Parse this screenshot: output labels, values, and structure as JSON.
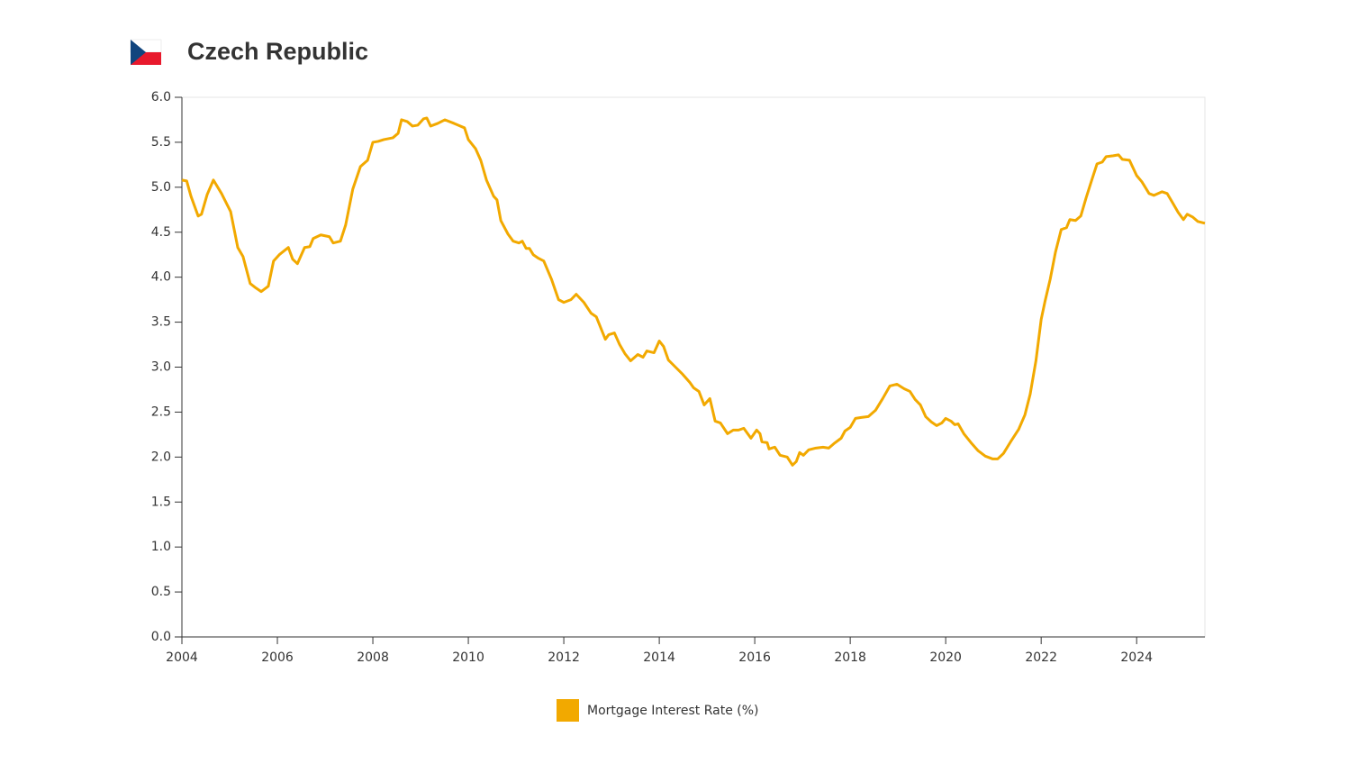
{
  "chart_data": {
    "type": "line",
    "title": "Czech Republic",
    "x": [
      2004.0,
      2004.1,
      2004.19,
      2004.34,
      2004.41,
      2004.53,
      2004.66,
      2004.83,
      2005.02,
      2005.17,
      2005.28,
      2005.43,
      2005.55,
      2005.66,
      2005.81,
      2005.92,
      2006.04,
      2006.23,
      2006.32,
      2006.42,
      2006.57,
      2006.68,
      2006.75,
      2006.91,
      2007.09,
      2007.17,
      2007.32,
      2007.43,
      2007.58,
      2007.74,
      2007.89,
      2008.0,
      2008.11,
      2008.23,
      2008.42,
      2008.53,
      2008.6,
      2008.72,
      2008.83,
      2008.94,
      2009.06,
      2009.13,
      2009.21,
      2009.36,
      2009.51,
      2009.7,
      2009.92,
      2010.0,
      2010.15,
      2010.26,
      2010.38,
      2010.53,
      2010.6,
      2010.68,
      2010.83,
      2010.94,
      2011.06,
      2011.13,
      2011.21,
      2011.28,
      2011.36,
      2011.47,
      2011.58,
      2011.74,
      2011.89,
      2012.0,
      2012.15,
      2012.26,
      2012.42,
      2012.57,
      2012.68,
      2012.87,
      2012.94,
      2013.06,
      2013.17,
      2013.28,
      2013.4,
      2013.55,
      2013.66,
      2013.74,
      2013.89,
      2014.0,
      2014.09,
      2014.19,
      2014.34,
      2014.49,
      2014.64,
      2014.72,
      2014.83,
      2014.94,
      2015.06,
      2015.17,
      2015.28,
      2015.43,
      2015.55,
      2015.66,
      2015.77,
      2015.92,
      2016.04,
      2016.11,
      2016.15,
      2016.26,
      2016.3,
      2016.42,
      2016.53,
      2016.68,
      2016.79,
      2016.87,
      2016.94,
      2017.02,
      2017.13,
      2017.28,
      2017.43,
      2017.55,
      2017.66,
      2017.81,
      2017.89,
      2018.0,
      2018.11,
      2018.23,
      2018.38,
      2018.53,
      2018.68,
      2018.83,
      2018.98,
      2019.13,
      2019.25,
      2019.36,
      2019.47,
      2019.58,
      2019.7,
      2019.81,
      2019.92,
      2020.0,
      2020.11,
      2020.19,
      2020.26,
      2020.38,
      2020.53,
      2020.68,
      2020.83,
      2020.98,
      2021.09,
      2021.21,
      2021.36,
      2021.53,
      2021.66,
      2021.77,
      2021.89,
      2022.0,
      2022.08,
      2022.19,
      2022.3,
      2022.42,
      2022.53,
      2022.6,
      2022.72,
      2022.83,
      2022.94,
      2023.06,
      2023.17,
      2023.28,
      2023.36,
      2023.51,
      2023.62,
      2023.7,
      2023.85,
      2024.0,
      2024.11,
      2024.26,
      2024.36,
      2024.53,
      2024.64,
      2024.75,
      2024.87,
      2024.98,
      2025.06,
      2025.17,
      2025.28,
      2025.43
    ],
    "series": [
      {
        "name": "Mortgage Interest Rate (%)",
        "color": "#f2a900",
        "values": [
          5.08,
          5.07,
          4.9,
          4.68,
          4.7,
          4.92,
          5.08,
          4.93,
          4.73,
          4.33,
          4.23,
          3.93,
          3.88,
          3.84,
          3.9,
          4.18,
          4.25,
          4.33,
          4.2,
          4.15,
          4.33,
          4.34,
          4.43,
          4.47,
          4.45,
          4.38,
          4.4,
          4.58,
          4.98,
          5.23,
          5.3,
          5.5,
          5.51,
          5.53,
          5.55,
          5.6,
          5.75,
          5.73,
          5.68,
          5.69,
          5.76,
          5.77,
          5.68,
          5.71,
          5.75,
          5.71,
          5.66,
          5.53,
          5.43,
          5.3,
          5.08,
          4.9,
          4.86,
          4.63,
          4.48,
          4.4,
          4.38,
          4.4,
          4.32,
          4.32,
          4.25,
          4.21,
          4.18,
          3.98,
          3.75,
          3.72,
          3.75,
          3.81,
          3.72,
          3.6,
          3.56,
          3.31,
          3.36,
          3.38,
          3.25,
          3.15,
          3.07,
          3.14,
          3.11,
          3.18,
          3.16,
          3.29,
          3.23,
          3.08,
          3.0,
          2.92,
          2.83,
          2.77,
          2.73,
          2.58,
          2.65,
          2.4,
          2.38,
          2.26,
          2.3,
          2.3,
          2.32,
          2.21,
          2.3,
          2.26,
          2.17,
          2.16,
          2.09,
          2.11,
          2.02,
          2.0,
          1.91,
          1.95,
          2.05,
          2.02,
          2.08,
          2.1,
          2.11,
          2.1,
          2.15,
          2.21,
          2.29,
          2.33,
          2.43,
          2.44,
          2.45,
          2.52,
          2.65,
          2.79,
          2.81,
          2.76,
          2.73,
          2.64,
          2.58,
          2.45,
          2.39,
          2.35,
          2.38,
          2.43,
          2.4,
          2.36,
          2.37,
          2.26,
          2.16,
          2.07,
          2.01,
          1.98,
          1.98,
          2.04,
          2.17,
          2.31,
          2.47,
          2.7,
          3.07,
          3.53,
          3.73,
          3.98,
          4.28,
          4.53,
          4.55,
          4.64,
          4.63,
          4.68,
          4.88,
          5.08,
          5.26,
          5.28,
          5.34,
          5.35,
          5.36,
          5.31,
          5.3,
          5.13,
          5.06,
          4.93,
          4.91,
          4.95,
          4.93,
          4.83,
          4.72,
          4.64,
          4.7,
          4.67,
          4.62,
          4.6
        ]
      }
    ],
    "xlim": [
      2004,
      2025.43
    ],
    "xticks": [
      2004,
      2006,
      2008,
      2010,
      2012,
      2014,
      2016,
      2018,
      2020,
      2022,
      2024
    ],
    "ylim": [
      0,
      6
    ],
    "yticks": [
      {
        "value": 0,
        "label": "0.0"
      },
      0.5,
      {
        "value": 1,
        "label": "1.0"
      },
      1.5,
      {
        "value": 2,
        "label": "2.0"
      },
      2.5,
      {
        "value": 3,
        "label": "3.0"
      },
      3.5,
      {
        "value": 4,
        "label": "4.0"
      },
      4.5,
      {
        "value": 5,
        "label": "5.0"
      },
      5.5,
      {
        "value": 6,
        "label": "6.0"
      }
    ]
  }
}
